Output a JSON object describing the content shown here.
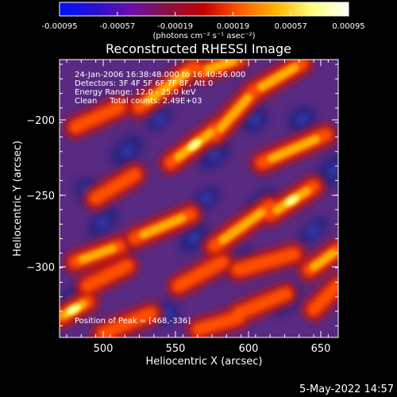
{
  "colorbar": {
    "ticks": [
      "-0.00095",
      "-0.00057",
      "-0.00019",
      "0.00019",
      "0.00057",
      "0.00095"
    ],
    "units": "(photons cm⁻² s⁻¹ asec⁻²)",
    "colors": [
      "#0010ff",
      "#2a10d0",
      "#6a10a8",
      "#8a1040",
      "#c40000",
      "#ff5a00",
      "#ffb400",
      "#ffff80",
      "#ffffff"
    ]
  },
  "title": "Reconstructed RHESSI Image",
  "info": {
    "time_range": "24-Jan-2006 16:38:48.000 to 16:40:56.000",
    "detectors": "Detectors: 3F 4F 5F 6F 7F 8F, Att 0",
    "energy": "Energy Range: 12.0 - 25.0 keV",
    "clean": "Clean     Total counts: 2.49E+03",
    "peak": "Position of Peak = [468,-336]"
  },
  "axes": {
    "xlabel": "Heliocentric X (arcsec)",
    "ylabel": "Heliocentric Y (arcsec)",
    "xticks": [
      "500",
      "550",
      "600",
      "650"
    ],
    "yticks": [
      "−200",
      "−250",
      "−300"
    ]
  },
  "timestamp": "5-May-2022 14:57",
  "palette": {
    "background": "#582a82",
    "trough": "#2c2080",
    "blue_core": "#3040b8",
    "ridge_low": "#b81818",
    "ridge_mid": "#ff5000",
    "ridge_high": "#ffb000",
    "ridge_peak": "#ffff90"
  }
}
